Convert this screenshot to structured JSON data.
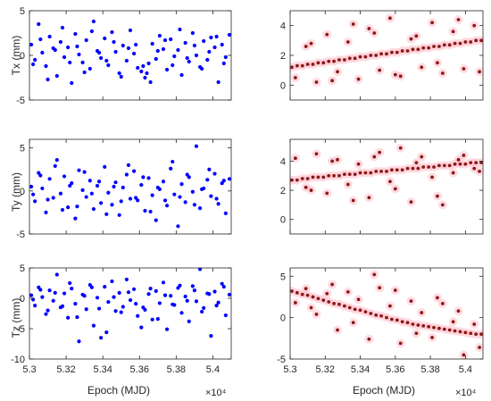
{
  "figure": {
    "x_axis_label": "Epoch (MJD)",
    "x_exponent_label": "×10⁴",
    "left_color": "#0000ff",
    "right_marker_color": "#8b1a1a",
    "right_halo_color": "#ffc0cb"
  },
  "chart_data": [
    {
      "type": "scatter",
      "row": 0,
      "col": 0,
      "ylabel": "Tx (mm)",
      "xlabel": "",
      "xlim": [
        5.3,
        5.41
      ],
      "ylim": [
        -5,
        5
      ],
      "xticks": [
        5.3,
        5.32,
        5.34,
        5.36,
        5.38,
        5.4
      ],
      "yticks": [
        -5,
        0,
        5
      ],
      "style": "dots",
      "series": [
        {
          "x": [
            5.301,
            5.303,
            5.305,
            5.307,
            5.309,
            5.311,
            5.313,
            5.315,
            5.317,
            5.319,
            5.321,
            5.323,
            5.325,
            5.327,
            5.329,
            5.331,
            5.333,
            5.335,
            5.337,
            5.339,
            5.341,
            5.343,
            5.345,
            5.347,
            5.349,
            5.351,
            5.353,
            5.355,
            5.357,
            5.359,
            5.361,
            5.363,
            5.365,
            5.367,
            5.369,
            5.371,
            5.373,
            5.375,
            5.377,
            5.379,
            5.381,
            5.383,
            5.385,
            5.387,
            5.389,
            5.391,
            5.393,
            5.395,
            5.397,
            5.399,
            5.401,
            5.403,
            5.405,
            5.407,
            5.409,
            5.302,
            5.306,
            5.31,
            5.314,
            5.318,
            5.322,
            5.326,
            5.33,
            5.334,
            5.338,
            5.342,
            5.346,
            5.35,
            5.354,
            5.358,
            5.362,
            5.364,
            5.366,
            5.37,
            5.374,
            5.378,
            5.382,
            5.386,
            5.39,
            5.394,
            5.398,
            5.402,
            5.406
          ],
          "y": [
            1.2,
            -0.5,
            3.5,
            0.3,
            -1.2,
            2.1,
            0.8,
            -2.3,
            1.5,
            -0.2,
            0.9,
            -3.1,
            2.4,
            0.1,
            -0.8,
            1.7,
            -1.5,
            3.8,
            0.5,
            -0.3,
            1.9,
            -1.1,
            2.6,
            0.4,
            -2.0,
            1.1,
            -0.6,
            2.8,
            0.2,
            -1.4,
            -1.8,
            -2.5,
            -0.9,
            1.3,
            -0.4,
            2.2,
            0.7,
            -1.6,
            1.8,
            -0.1,
            0.6,
            -2.2,
            1.4,
            -0.7,
            2.5,
            0.0,
            -1.3,
            1.6,
            -0.5,
            2.0,
            0.9,
            -3.0,
            1.2,
            -0.2,
            2.3,
            -1.0,
            1.8,
            -2.7,
            0.6,
            3.1,
            -0.8,
            1.0,
            -1.9,
            2.7,
            0.3,
            -0.6,
            1.5,
            -2.4,
            0.8,
            1.2,
            -1.2,
            -2.0,
            -3.0,
            0.5,
            1.7,
            -1.1,
            2.9,
            -0.3,
            1.1,
            -1.5,
            0.4,
            2.1,
            -0.9
          ]
        }
      ]
    },
    {
      "type": "scatter",
      "row": 0,
      "col": 1,
      "ylabel": "",
      "xlabel": "",
      "xlim": [
        5.3,
        5.41
      ],
      "ylim": [
        -1,
        5
      ],
      "xticks": [
        5.3,
        5.32,
        5.34,
        5.36,
        5.38,
        5.4
      ],
      "yticks": [
        0,
        2,
        4
      ],
      "style": "halo",
      "series": [
        {
          "x": [
            5.301,
            5.304,
            5.307,
            5.31,
            5.313,
            5.316,
            5.319,
            5.322,
            5.325,
            5.328,
            5.331,
            5.334,
            5.337,
            5.34,
            5.343,
            5.346,
            5.349,
            5.352,
            5.355,
            5.358,
            5.361,
            5.364,
            5.367,
            5.37,
            5.373,
            5.376,
            5.379,
            5.382,
            5.385,
            5.388,
            5.391,
            5.394,
            5.397,
            5.4,
            5.403,
            5.406,
            5.409,
            5.303,
            5.309,
            5.315,
            5.321,
            5.327,
            5.333,
            5.339,
            5.345,
            5.351,
            5.357,
            5.363,
            5.369,
            5.375,
            5.381,
            5.387,
            5.393,
            5.399,
            5.405,
            5.312,
            5.324,
            5.336,
            5.348,
            5.36,
            5.372,
            5.384,
            5.396,
            5.408
          ],
          "y": [
            1.2,
            1.3,
            1.3,
            1.4,
            1.4,
            1.5,
            1.5,
            1.6,
            1.6,
            1.7,
            1.7,
            1.8,
            1.8,
            1.9,
            1.9,
            2.0,
            2.0,
            2.1,
            2.1,
            2.2,
            2.2,
            2.3,
            2.3,
            2.4,
            2.4,
            2.5,
            2.5,
            2.6,
            2.6,
            2.7,
            2.7,
            2.8,
            2.8,
            2.9,
            2.9,
            3.0,
            3.0,
            0.5,
            2.6,
            0.2,
            3.4,
            0.9,
            2.9,
            0.4,
            3.8,
            1.0,
            4.5,
            0.6,
            3.1,
            1.2,
            4.2,
            0.8,
            3.6,
            1.1,
            4.0,
            2.8,
            0.3,
            4.1,
            3.5,
            0.7,
            3.3,
            1.5,
            4.4,
            0.9
          ]
        }
      ]
    },
    {
      "type": "scatter",
      "row": 1,
      "col": 0,
      "ylabel": "Ty (mm)",
      "xlabel": "",
      "xlim": [
        5.3,
        5.41
      ],
      "ylim": [
        -5,
        6
      ],
      "xticks": [
        5.3,
        5.32,
        5.34,
        5.36,
        5.38,
        5.4
      ],
      "yticks": [
        -5,
        0,
        5
      ],
      "style": "dots",
      "series": [
        {
          "x": [
            5.301,
            5.303,
            5.305,
            5.307,
            5.309,
            5.311,
            5.313,
            5.315,
            5.317,
            5.319,
            5.321,
            5.323,
            5.325,
            5.327,
            5.329,
            5.331,
            5.333,
            5.335,
            5.337,
            5.339,
            5.341,
            5.343,
            5.345,
            5.347,
            5.349,
            5.351,
            5.353,
            5.355,
            5.357,
            5.359,
            5.361,
            5.363,
            5.365,
            5.367,
            5.369,
            5.371,
            5.373,
            5.375,
            5.377,
            5.379,
            5.381,
            5.383,
            5.385,
            5.387,
            5.389,
            5.391,
            5.393,
            5.395,
            5.397,
            5.399,
            5.401,
            5.403,
            5.405,
            5.407,
            5.409,
            5.302,
            5.306,
            5.31,
            5.314,
            5.318,
            5.322,
            5.326,
            5.33,
            5.334,
            5.338,
            5.342,
            5.346,
            5.35,
            5.354,
            5.358,
            5.362,
            5.366,
            5.37,
            5.374,
            5.378,
            5.382,
            5.386,
            5.39,
            5.394,
            5.398,
            5.402,
            5.406
          ],
          "y": [
            0.5,
            -1.2,
            2.1,
            0.3,
            -2.5,
            1.4,
            -0.8,
            3.6,
            -0.3,
            1.7,
            -1.9,
            0.9,
            -3.2,
            2.4,
            0.1,
            -0.7,
            1.2,
            -2.1,
            0.6,
            -1.4,
            2.8,
            -0.2,
            -1.6,
            1.0,
            -2.8,
            0.4,
            1.9,
            -0.9,
            2.3,
            -1.1,
            0.7,
            -2.3,
            1.5,
            -0.5,
            -3.4,
            0.2,
            1.1,
            -1.7,
            2.6,
            -0.4,
            -4.1,
            0.8,
            -1.3,
            1.6,
            -0.1,
            5.2,
            -2.0,
            0.3,
            1.3,
            -0.6,
            2.0,
            -1.5,
            0.9,
            -2.6,
            1.4,
            -0.4,
            1.8,
            -1.0,
            2.9,
            -2.2,
            0.6,
            -1.8,
            2.2,
            -0.3,
            1.1,
            -2.7,
            0.5,
            -1.2,
            3.0,
            -0.8,
            1.6,
            -2.4,
            0.4,
            -1.1,
            3.4,
            -0.7,
            1.9,
            -1.6,
            0.2,
            2.5,
            -0.9,
            1.2
          ]
        }
      ]
    },
    {
      "type": "scatter",
      "row": 1,
      "col": 1,
      "ylabel": "",
      "xlabel": "",
      "xlim": [
        5.3,
        5.41
      ],
      "ylim": [
        -1,
        5.5
      ],
      "xticks": [
        5.3,
        5.32,
        5.34,
        5.36,
        5.38,
        5.4
      ],
      "yticks": [
        0,
        2,
        4
      ],
      "style": "halo",
      "series": [
        {
          "x": [
            5.301,
            5.304,
            5.307,
            5.31,
            5.313,
            5.316,
            5.319,
            5.322,
            5.325,
            5.328,
            5.331,
            5.334,
            5.337,
            5.34,
            5.343,
            5.346,
            5.349,
            5.352,
            5.355,
            5.358,
            5.361,
            5.364,
            5.367,
            5.37,
            5.373,
            5.376,
            5.379,
            5.382,
            5.385,
            5.388,
            5.391,
            5.394,
            5.397,
            5.4,
            5.403,
            5.406,
            5.409,
            5.303,
            5.309,
            5.315,
            5.321,
            5.327,
            5.333,
            5.339,
            5.345,
            5.351,
            5.357,
            5.363,
            5.369,
            5.375,
            5.381,
            5.387,
            5.393,
            5.399,
            5.405,
            5.312,
            5.324,
            5.336,
            5.348,
            5.36,
            5.372,
            5.384,
            5.396,
            5.408
          ],
          "y": [
            2.7,
            2.7,
            2.8,
            2.8,
            2.9,
            2.9,
            2.9,
            3.0,
            3.0,
            3.0,
            3.1,
            3.1,
            3.1,
            3.2,
            3.2,
            3.2,
            3.3,
            3.3,
            3.3,
            3.4,
            3.4,
            3.4,
            3.5,
            3.5,
            3.5,
            3.6,
            3.6,
            3.6,
            3.7,
            3.7,
            3.7,
            3.8,
            3.8,
            3.8,
            3.9,
            3.9,
            3.9,
            4.2,
            2.2,
            4.5,
            1.8,
            4.1,
            2.4,
            3.8,
            1.5,
            4.6,
            2.6,
            4.9,
            1.2,
            4.3,
            2.9,
            1.0,
            3.2,
            4.4,
            3.5,
            2.0,
            4.0,
            1.3,
            4.3,
            2.1,
            3.9,
            1.6,
            4.1,
            3.3
          ]
        }
      ]
    },
    {
      "type": "scatter",
      "row": 2,
      "col": 0,
      "ylabel": "Tz (mm)",
      "xlabel": "Epoch (MJD)",
      "xlim": [
        5.3,
        5.41
      ],
      "ylim": [
        -10,
        5
      ],
      "xticks": [
        5.3,
        5.32,
        5.34,
        5.36,
        5.38,
        5.4
      ],
      "xticklabels": [
        "5.3",
        "5.32",
        "5.34",
        "5.36",
        "5.38",
        "5.4"
      ],
      "yticks": [
        -10,
        -5,
        0,
        5
      ],
      "style": "dots",
      "series": [
        {
          "x": [
            5.301,
            5.303,
            5.305,
            5.307,
            5.309,
            5.311,
            5.313,
            5.315,
            5.317,
            5.319,
            5.321,
            5.323,
            5.325,
            5.327,
            5.329,
            5.331,
            5.333,
            5.335,
            5.337,
            5.339,
            5.341,
            5.343,
            5.345,
            5.347,
            5.349,
            5.351,
            5.353,
            5.355,
            5.357,
            5.359,
            5.361,
            5.363,
            5.365,
            5.367,
            5.369,
            5.371,
            5.373,
            5.375,
            5.377,
            5.379,
            5.381,
            5.383,
            5.385,
            5.387,
            5.389,
            5.391,
            5.393,
            5.395,
            5.397,
            5.399,
            5.401,
            5.403,
            5.405,
            5.407,
            5.409,
            5.302,
            5.306,
            5.31,
            5.314,
            5.318,
            5.322,
            5.326,
            5.33,
            5.334,
            5.338,
            5.342,
            5.346,
            5.35,
            5.354,
            5.358,
            5.362,
            5.366,
            5.37,
            5.374,
            5.378,
            5.382,
            5.386,
            5.39,
            5.394,
            5.398,
            5.402,
            5.406
          ],
          "y": [
            0.5,
            -1.2,
            1.8,
            0.2,
            -2.6,
            1.3,
            -0.4,
            3.9,
            -1.5,
            0.8,
            -3.2,
            1.6,
            -0.9,
            -7.1,
            0.6,
            -1.8,
            2.2,
            -4.5,
            0.1,
            -6.5,
            1.9,
            -0.6,
            2.8,
            -2.1,
            0.9,
            -1.4,
            3.1,
            -0.3,
            1.5,
            -2.9,
            -4.8,
            -1.9,
            0.7,
            -3.5,
            1.2,
            -0.8,
            2.6,
            -5.1,
            0.4,
            -1.1,
            1.7,
            -2.4,
            0.3,
            -3.8,
            2.0,
            -0.5,
            4.8,
            -1.6,
            0.8,
            -6.2,
            1.1,
            -0.7,
            2.4,
            -2.8,
            0.6,
            -0.2,
            1.4,
            -2.0,
            0.9,
            -1.3,
            2.5,
            -3.1,
            0.4,
            1.8,
            -1.7,
            -5.6,
            0.2,
            -2.3,
            1.0,
            -0.9,
            -1.5,
            1.6,
            -3.4,
            0.5,
            -1.0,
            2.1,
            -0.4,
            1.3,
            -2.2,
            0.7,
            -1.2,
            1.9
          ]
        }
      ]
    },
    {
      "type": "scatter",
      "row": 2,
      "col": 1,
      "ylabel": "",
      "xlabel": "Epoch (MJD)",
      "xlim": [
        5.3,
        5.41
      ],
      "ylim": [
        -5,
        6
      ],
      "xticks": [
        5.3,
        5.32,
        5.34,
        5.36,
        5.38,
        5.4
      ],
      "xticklabels": [
        "5.3",
        "5.32",
        "5.34",
        "5.36",
        "5.38",
        "5.4"
      ],
      "yticks": [
        -5,
        0,
        5
      ],
      "style": "halo",
      "series": [
        {
          "x": [
            5.301,
            5.304,
            5.307,
            5.31,
            5.313,
            5.316,
            5.319,
            5.322,
            5.325,
            5.328,
            5.331,
            5.334,
            5.337,
            5.34,
            5.343,
            5.346,
            5.349,
            5.352,
            5.355,
            5.358,
            5.361,
            5.364,
            5.367,
            5.37,
            5.373,
            5.376,
            5.379,
            5.382,
            5.385,
            5.388,
            5.391,
            5.394,
            5.397,
            5.4,
            5.403,
            5.406,
            5.409,
            5.303,
            5.309,
            5.315,
            5.321,
            5.327,
            5.333,
            5.339,
            5.345,
            5.351,
            5.357,
            5.363,
            5.369,
            5.375,
            5.381,
            5.387,
            5.393,
            5.399,
            5.405,
            5.312,
            5.324,
            5.336,
            5.348,
            5.36,
            5.372,
            5.384,
            5.396,
            5.408
          ],
          "y": [
            3.2,
            3.0,
            2.8,
            2.7,
            2.5,
            2.3,
            2.1,
            1.9,
            1.7,
            1.6,
            1.4,
            1.2,
            1.0,
            0.9,
            0.7,
            0.5,
            0.3,
            0.2,
            0.0,
            -0.2,
            -0.3,
            -0.5,
            -0.6,
            -0.8,
            -0.9,
            -1.0,
            -1.1,
            -1.2,
            -1.3,
            -1.4,
            -1.5,
            -1.6,
            -1.7,
            -1.8,
            -1.9,
            -2.0,
            -2.0,
            1.8,
            3.5,
            0.4,
            2.9,
            -1.5,
            3.1,
            2.2,
            -2.6,
            3.6,
            1.4,
            -3.1,
            2.0,
            0.6,
            -2.4,
            1.7,
            -0.5,
            -4.5,
            -0.8,
            1.2,
            4.0,
            -0.6,
            5.2,
            3.3,
            -1.9,
            2.4,
            0.8,
            -3.6
          ]
        }
      ]
    }
  ]
}
